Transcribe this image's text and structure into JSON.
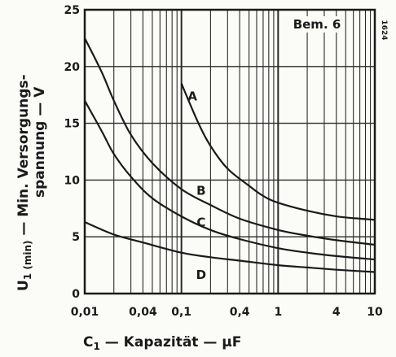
{
  "chart_data": {
    "type": "line",
    "xscale": "log",
    "xlim": [
      0.01,
      10
    ],
    "ylim": [
      0,
      25
    ],
    "xlabel": "C1 — Kapazität — µF",
    "ylabel": "U1(min) — Min. Versorgungs- spannung — V",
    "xlabel_parts": {
      "main": "C",
      "sub": "1",
      "rest": " — Kapazität — µF"
    },
    "ylabel_parts": {
      "line1_main": "U",
      "line1_sub": "1 (min)",
      "line1_rest": " — Min. Versorgungs-",
      "line2": "spannung — V"
    },
    "xticks": [
      {
        "value": 0.01,
        "label": "0,01"
      },
      {
        "value": 0.04,
        "label": "0,04"
      },
      {
        "value": 0.1,
        "label": "0,1"
      },
      {
        "value": 0.4,
        "label": "0,4"
      },
      {
        "value": 1,
        "label": "1"
      },
      {
        "value": 4,
        "label": "4"
      },
      {
        "value": 10,
        "label": "10"
      }
    ],
    "yticks": [
      0,
      5,
      10,
      15,
      20,
      25
    ],
    "grid": true,
    "annotation": "Bem. 6",
    "figure_code": "1624",
    "series": [
      {
        "name": "A",
        "label_at": [
          0.13,
          17
        ],
        "x": [
          0.1,
          0.15,
          0.2,
          0.3,
          0.5,
          0.7,
          1,
          2,
          4,
          7,
          10
        ],
        "y": [
          18.5,
          15.0,
          13.0,
          11.0,
          9.5,
          8.6,
          8.0,
          7.3,
          6.8,
          6.6,
          6.5
        ]
      },
      {
        "name": "B",
        "label_at": [
          0.16,
          8.7
        ],
        "x": [
          0.01,
          0.015,
          0.02,
          0.03,
          0.05,
          0.1,
          0.2,
          0.4,
          1,
          2,
          4,
          10
        ],
        "y": [
          22.5,
          19.5,
          17.0,
          14.0,
          11.5,
          9.2,
          7.8,
          6.6,
          5.6,
          5.1,
          4.7,
          4.3
        ]
      },
      {
        "name": "C",
        "label_at": [
          0.16,
          5.9
        ],
        "x": [
          0.01,
          0.015,
          0.02,
          0.03,
          0.05,
          0.1,
          0.2,
          0.4,
          1,
          2,
          4,
          10
        ],
        "y": [
          17.0,
          14.3,
          12.3,
          10.3,
          8.4,
          6.8,
          5.6,
          4.8,
          4.0,
          3.6,
          3.3,
          3.0
        ]
      },
      {
        "name": "D",
        "label_at": [
          0.16,
          1.3
        ],
        "x": [
          0.01,
          0.02,
          0.04,
          0.1,
          0.2,
          0.4,
          1,
          2,
          4,
          10
        ],
        "y": [
          6.3,
          5.2,
          4.5,
          3.6,
          3.2,
          2.9,
          2.5,
          2.3,
          2.1,
          1.9
        ]
      }
    ]
  }
}
